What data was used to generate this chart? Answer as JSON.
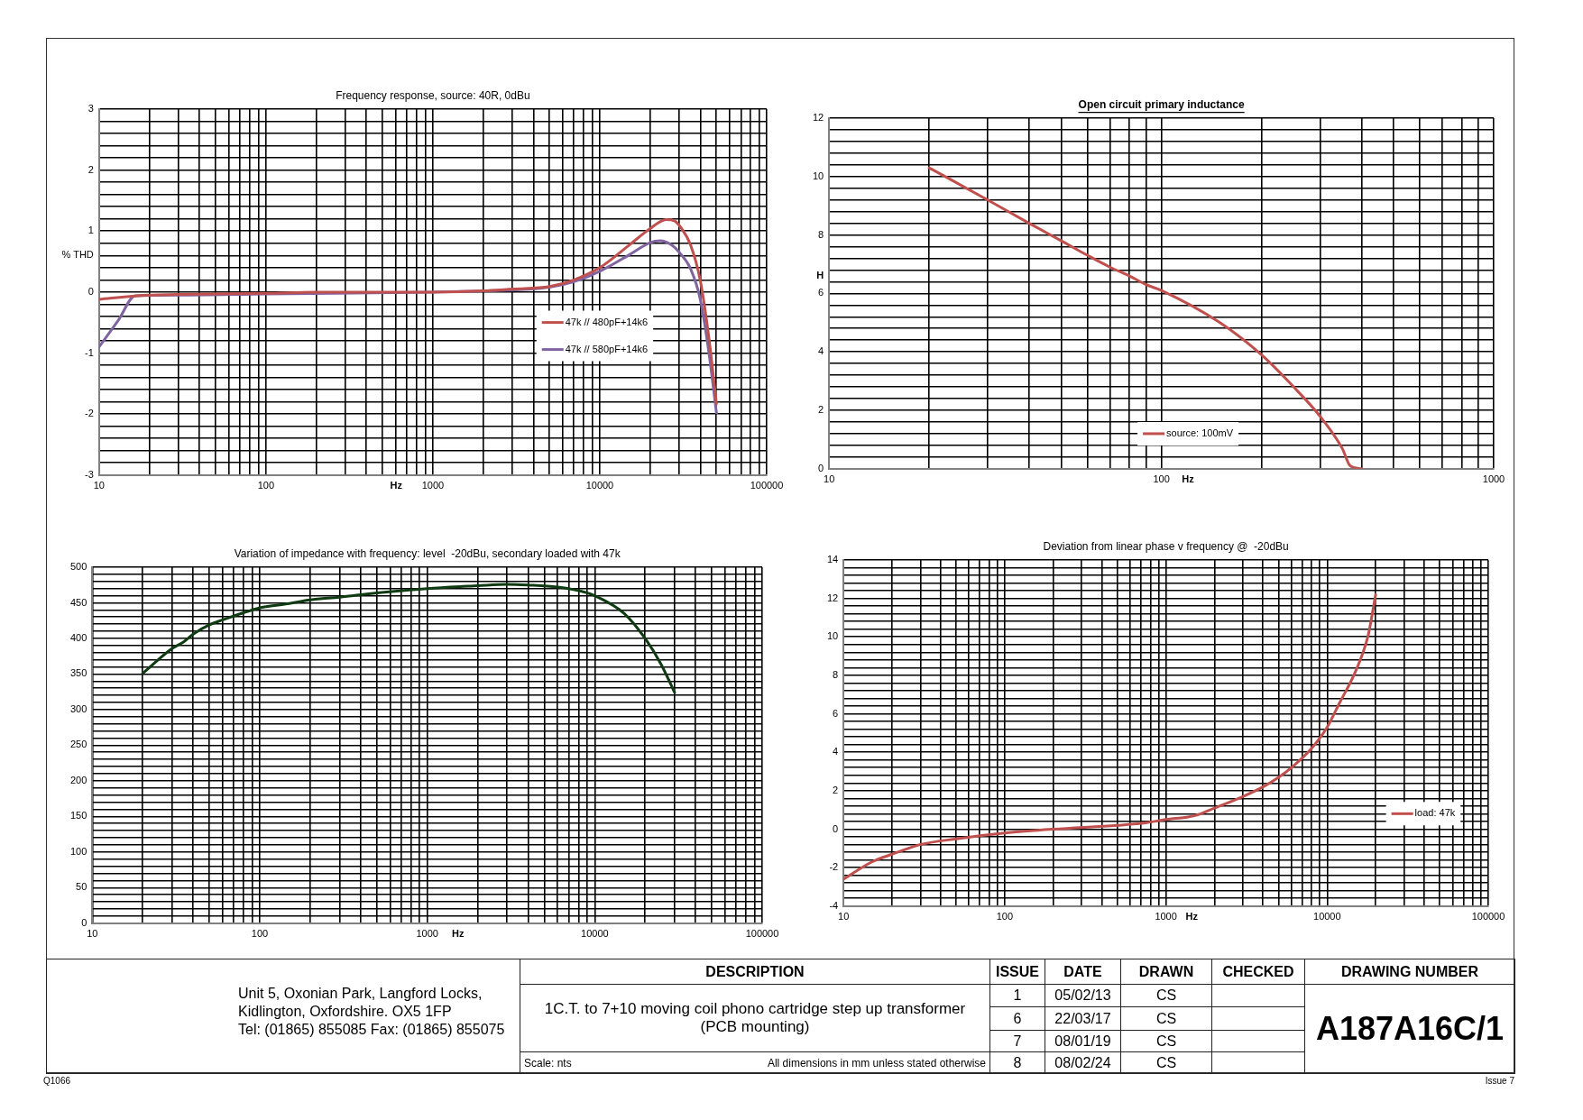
{
  "chart_data": [
    {
      "type": "line",
      "title": "Frequency response, source: 40R, 0dBu",
      "xlabel": "Hz",
      "ylabel": "% THD",
      "log": "x",
      "grid": true,
      "legend": "right",
      "marker": "none",
      "xlim": [
        10,
        100000
      ],
      "xticks": [
        10,
        {
          "value": 20,
          "label": null
        },
        {
          "value": 30,
          "label": null
        },
        {
          "value": 40,
          "label": null
        },
        {
          "value": 50,
          "label": null
        },
        {
          "value": 60,
          "label": null
        },
        {
          "value": 70,
          "label": null
        },
        {
          "value": 80,
          "label": null
        },
        {
          "value": 90,
          "label": null
        },
        100,
        {
          "value": 200,
          "label": null
        },
        {
          "value": 300,
          "label": null
        },
        {
          "value": 400,
          "label": null
        },
        {
          "value": 500,
          "label": null
        },
        {
          "value": 600,
          "label": null
        },
        {
          "value": 700,
          "label": null
        },
        {
          "value": 800,
          "label": null
        },
        {
          "value": 900,
          "label": null
        },
        1000,
        {
          "value": 2000,
          "label": null
        },
        {
          "value": 3000,
          "label": null
        },
        {
          "value": 4000,
          "label": null
        },
        {
          "value": 5000,
          "label": null
        },
        {
          "value": 6000,
          "label": null
        },
        {
          "value": 7000,
          "label": null
        },
        {
          "value": 8000,
          "label": null
        },
        {
          "value": 9000,
          "label": null
        },
        10000,
        {
          "value": 20000,
          "label": null
        },
        {
          "value": 30000,
          "label": null
        },
        {
          "value": 40000,
          "label": null
        },
        {
          "value": 50000,
          "label": null
        },
        {
          "value": 60000,
          "label": null
        },
        {
          "value": 70000,
          "label": null
        },
        {
          "value": 80000,
          "label": null
        },
        {
          "value": 90000,
          "label": null
        },
        100000
      ],
      "ylim": [
        -3,
        3
      ],
      "yticks": [
        -3,
        {
          "value": -2.8,
          "label": null
        },
        {
          "value": -2.6,
          "label": null
        },
        {
          "value": -2.4,
          "label": null
        },
        {
          "value": -2.2,
          "label": null
        },
        -2,
        {
          "value": -1.8,
          "label": null
        },
        {
          "value": -1.6,
          "label": null
        },
        {
          "value": -1.4,
          "label": null
        },
        {
          "value": -1.2,
          "label": null
        },
        -1,
        {
          "value": -0.8,
          "label": null
        },
        {
          "value": -0.6,
          "label": null
        },
        {
          "value": -0.4,
          "label": null
        },
        {
          "value": -0.2,
          "label": null
        },
        0,
        {
          "value": 0.2,
          "label": null
        },
        {
          "value": 0.4,
          "label": null
        },
        {
          "value": 0.6,
          "label": null
        },
        {
          "value": 0.8,
          "label": null
        },
        1,
        {
          "value": 1.2,
          "label": null
        },
        {
          "value": 1.4,
          "label": null
        },
        {
          "value": 1.6,
          "label": null
        },
        {
          "value": 1.8,
          "label": null
        },
        2,
        {
          "value": 2.2,
          "label": null
        },
        {
          "value": 2.4,
          "label": null
        },
        {
          "value": 2.6,
          "label": null
        },
        {
          "value": 2.8,
          "label": null
        },
        3
      ],
      "series": [
        {
          "name": "47k // 480pF+14k6",
          "color": "#c0504d",
          "x": [
            10,
            17,
            30,
            100,
            200,
            1000,
            2000,
            3000,
            5000,
            7000,
            10000,
            15000,
            20000,
            25000,
            28000,
            30000,
            35000,
            40000,
            45000,
            50000
          ],
          "values": [
            -0.12,
            -0.06,
            -0.04,
            -0.02,
            0,
            0,
            0.02,
            0.05,
            0.09,
            0.2,
            0.4,
            0.77,
            1.04,
            1.19,
            1.17,
            1.09,
            0.77,
            0.19,
            -0.74,
            -1.83
          ]
        },
        {
          "name": "47k // 580pF+14k6",
          "color": "#8064a2",
          "x": [
            10,
            13,
            16.5,
            30,
            100,
            1000,
            2000,
            5000,
            7000,
            10000,
            15000,
            20000,
            23000,
            27000,
            30000,
            35000,
            40000,
            45000,
            50000
          ],
          "values": [
            -0.9,
            -0.47,
            -0.06,
            -0.05,
            -0.03,
            0,
            0.02,
            0.08,
            0.17,
            0.34,
            0.61,
            0.81,
            0.84,
            0.77,
            0.65,
            0.38,
            -0.12,
            -0.98,
            -1.98
          ]
        }
      ]
    },
    {
      "type": "line",
      "title": "Open circuit primary inductance",
      "xlabel": "Hz",
      "ylabel": "H",
      "log": "x",
      "grid": true,
      "legend": "bottom",
      "marker": "none",
      "xlim": [
        10,
        1000
      ],
      "xticks": [
        10,
        {
          "value": 20,
          "label": null
        },
        {
          "value": 30,
          "label": null
        },
        {
          "value": 40,
          "label": null
        },
        {
          "value": 50,
          "label": null
        },
        {
          "value": 60,
          "label": null
        },
        {
          "value": 70,
          "label": null
        },
        {
          "value": 80,
          "label": null
        },
        {
          "value": 90,
          "label": null
        },
        100,
        {
          "value": 200,
          "label": null
        },
        {
          "value": 300,
          "label": null
        },
        {
          "value": 400,
          "label": null
        },
        {
          "value": 500,
          "label": null
        },
        {
          "value": 600,
          "label": null
        },
        {
          "value": 700,
          "label": null
        },
        {
          "value": 800,
          "label": null
        },
        {
          "value": 900,
          "label": null
        },
        1000
      ],
      "ylim": [
        0,
        12
      ],
      "yticks": [
        0,
        {
          "value": 0.4,
          "label": null
        },
        {
          "value": 0.8,
          "label": null
        },
        {
          "value": 1.2,
          "label": null
        },
        {
          "value": 1.6,
          "label": null
        },
        2,
        {
          "value": 2.4,
          "label": null
        },
        {
          "value": 2.8,
          "label": null
        },
        {
          "value": 3.2,
          "label": null
        },
        {
          "value": 3.6,
          "label": null
        },
        4,
        {
          "value": 4.4,
          "label": null
        },
        {
          "value": 4.8,
          "label": null
        },
        {
          "value": 5.2,
          "label": null
        },
        {
          "value": 5.6,
          "label": null
        },
        6,
        {
          "value": 6.4,
          "label": null
        },
        {
          "value": 6.8,
          "label": null
        },
        {
          "value": 7.2,
          "label": null
        },
        {
          "value": 7.6,
          "label": null
        },
        8,
        {
          "value": 8.4,
          "label": null
        },
        {
          "value": 8.8,
          "label": null
        },
        {
          "value": 9.2,
          "label": null
        },
        {
          "value": 9.6,
          "label": null
        },
        10,
        {
          "value": 10.4,
          "label": null
        },
        {
          "value": 10.8,
          "label": null
        },
        {
          "value": 11.2,
          "label": null
        },
        {
          "value": 11.6,
          "label": null
        },
        12
      ],
      "series": [
        {
          "name": "source: 100mV",
          "color": "#c0504d",
          "x": [
            20,
            30,
            40,
            50,
            60,
            70,
            80,
            90,
            100,
            150,
            200,
            250,
            300,
            350,
            370,
            400
          ],
          "values": [
            10.3,
            9.2,
            8.4,
            7.8,
            7.3,
            6.9,
            6.6,
            6.3,
            6.1,
            5.0,
            3.9,
            2.8,
            1.8,
            0.7,
            0.1,
            0
          ]
        }
      ]
    },
    {
      "type": "line",
      "title": "Variation of impedance with frequency: level  -20dBu, secondary loaded with 47k",
      "xlabel": "Hz",
      "log": "x",
      "grid": true,
      "marker": "none",
      "xlim": [
        10,
        100000
      ],
      "xticks": [
        10,
        {
          "value": 20,
          "label": null
        },
        {
          "value": 30,
          "label": null
        },
        {
          "value": 40,
          "label": null
        },
        {
          "value": 50,
          "label": null
        },
        {
          "value": 60,
          "label": null
        },
        {
          "value": 70,
          "label": null
        },
        {
          "value": 80,
          "label": null
        },
        {
          "value": 90,
          "label": null
        },
        100,
        {
          "value": 200,
          "label": null
        },
        {
          "value": 300,
          "label": null
        },
        {
          "value": 400,
          "label": null
        },
        {
          "value": 500,
          "label": null
        },
        {
          "value": 600,
          "label": null
        },
        {
          "value": 700,
          "label": null
        },
        {
          "value": 800,
          "label": null
        },
        {
          "value": 900,
          "label": null
        },
        1000,
        {
          "value": 2000,
          "label": null
        },
        {
          "value": 3000,
          "label": null
        },
        {
          "value": 4000,
          "label": null
        },
        {
          "value": 5000,
          "label": null
        },
        {
          "value": 6000,
          "label": null
        },
        {
          "value": 7000,
          "label": null
        },
        {
          "value": 8000,
          "label": null
        },
        {
          "value": 9000,
          "label": null
        },
        10000,
        {
          "value": 20000,
          "label": null
        },
        {
          "value": 30000,
          "label": null
        },
        {
          "value": 40000,
          "label": null
        },
        {
          "value": 50000,
          "label": null
        },
        {
          "value": 60000,
          "label": null
        },
        {
          "value": 70000,
          "label": null
        },
        {
          "value": 80000,
          "label": null
        },
        {
          "value": 90000,
          "label": null
        },
        100000
      ],
      "ylim": [
        0,
        500
      ],
      "yticks": [
        0,
        {
          "value": 10,
          "label": null
        },
        {
          "value": 20,
          "label": null
        },
        {
          "value": 30,
          "label": null
        },
        {
          "value": 40,
          "label": null
        },
        50,
        {
          "value": 60,
          "label": null
        },
        {
          "value": 70,
          "label": null
        },
        {
          "value": 80,
          "label": null
        },
        {
          "value": 90,
          "label": null
        },
        100,
        {
          "value": 110,
          "label": null
        },
        {
          "value": 120,
          "label": null
        },
        {
          "value": 130,
          "label": null
        },
        {
          "value": 140,
          "label": null
        },
        150,
        {
          "value": 160,
          "label": null
        },
        {
          "value": 170,
          "label": null
        },
        {
          "value": 180,
          "label": null
        },
        {
          "value": 190,
          "label": null
        },
        200,
        {
          "value": 210,
          "label": null
        },
        {
          "value": 220,
          "label": null
        },
        {
          "value": 230,
          "label": null
        },
        {
          "value": 240,
          "label": null
        },
        250,
        {
          "value": 260,
          "label": null
        },
        {
          "value": 270,
          "label": null
        },
        {
          "value": 280,
          "label": null
        },
        {
          "value": 290,
          "label": null
        },
        300,
        {
          "value": 310,
          "label": null
        },
        {
          "value": 320,
          "label": null
        },
        {
          "value": 330,
          "label": null
        },
        {
          "value": 340,
          "label": null
        },
        350,
        {
          "value": 360,
          "label": null
        },
        {
          "value": 370,
          "label": null
        },
        {
          "value": 380,
          "label": null
        },
        {
          "value": 390,
          "label": null
        },
        400,
        {
          "value": 410,
          "label": null
        },
        {
          "value": 420,
          "label": null
        },
        {
          "value": 430,
          "label": null
        },
        {
          "value": 440,
          "label": null
        },
        450,
        {
          "value": 460,
          "label": null
        },
        {
          "value": 470,
          "label": null
        },
        {
          "value": 480,
          "label": null
        },
        {
          "value": 490,
          "label": null
        },
        500
      ],
      "series": [
        {
          "color": "#0f3b12",
          "x": [
            20,
            30,
            35,
            40,
            50,
            60,
            80,
            100,
            150,
            200,
            300,
            500,
            1000,
            2000,
            3000,
            4000,
            6000,
            9000,
            10000,
            15000,
            20000,
            25000,
            30000
          ],
          "values": [
            351,
            386,
            395,
            406,
            419,
            426,
            436,
            443,
            449,
            454,
            458,
            464,
            470,
            474,
            476,
            475,
            472,
            464,
            460,
            435,
            400,
            363,
            324
          ]
        }
      ]
    },
    {
      "type": "line",
      "title": "Deviation from linear phase v frequency @  -20dBu",
      "xlabel": "Hz",
      "log": "x",
      "grid": true,
      "legend": "right",
      "marker": "none",
      "xlim": [
        10,
        100000
      ],
      "xticks": [
        10,
        {
          "value": 20,
          "label": null
        },
        {
          "value": 30,
          "label": null
        },
        {
          "value": 40,
          "label": null
        },
        {
          "value": 50,
          "label": null
        },
        {
          "value": 60,
          "label": null
        },
        {
          "value": 70,
          "label": null
        },
        {
          "value": 80,
          "label": null
        },
        {
          "value": 90,
          "label": null
        },
        100,
        {
          "value": 200,
          "label": null
        },
        {
          "value": 300,
          "label": null
        },
        {
          "value": 400,
          "label": null
        },
        {
          "value": 500,
          "label": null
        },
        {
          "value": 600,
          "label": null
        },
        {
          "value": 700,
          "label": null
        },
        {
          "value": 800,
          "label": null
        },
        {
          "value": 900,
          "label": null
        },
        1000,
        {
          "value": 2000,
          "label": null
        },
        {
          "value": 3000,
          "label": null
        },
        {
          "value": 4000,
          "label": null
        },
        {
          "value": 5000,
          "label": null
        },
        {
          "value": 6000,
          "label": null
        },
        {
          "value": 7000,
          "label": null
        },
        {
          "value": 8000,
          "label": null
        },
        {
          "value": 9000,
          "label": null
        },
        10000,
        {
          "value": 20000,
          "label": null
        },
        {
          "value": 30000,
          "label": null
        },
        {
          "value": 40000,
          "label": null
        },
        {
          "value": 50000,
          "label": null
        },
        {
          "value": 60000,
          "label": null
        },
        {
          "value": 70000,
          "label": null
        },
        {
          "value": 80000,
          "label": null
        },
        {
          "value": 90000,
          "label": null
        },
        100000
      ],
      "ylim": [
        -4,
        14
      ],
      "yticks": [
        -4,
        {
          "value": -3.6,
          "label": null
        },
        {
          "value": -3.2,
          "label": null
        },
        {
          "value": -2.8,
          "label": null
        },
        {
          "value": -2.4,
          "label": null
        },
        -2,
        {
          "value": -1.6,
          "label": null
        },
        {
          "value": -1.2,
          "label": null
        },
        {
          "value": -0.8,
          "label": null
        },
        {
          "value": -0.4,
          "label": null
        },
        0,
        {
          "value": 0.4,
          "label": null
        },
        {
          "value": 0.8,
          "label": null
        },
        {
          "value": 1.2,
          "label": null
        },
        {
          "value": 1.6,
          "label": null
        },
        2,
        {
          "value": 2.4,
          "label": null
        },
        {
          "value": 2.8,
          "label": null
        },
        {
          "value": 3.2,
          "label": null
        },
        {
          "value": 3.6,
          "label": null
        },
        4,
        {
          "value": 4.4,
          "label": null
        },
        {
          "value": 4.8,
          "label": null
        },
        {
          "value": 5.2,
          "label": null
        },
        {
          "value": 5.6,
          "label": null
        },
        6,
        {
          "value": 6.4,
          "label": null
        },
        {
          "value": 6.8,
          "label": null
        },
        {
          "value": 7.2,
          "label": null
        },
        {
          "value": 7.6,
          "label": null
        },
        8,
        {
          "value": 8.4,
          "label": null
        },
        {
          "value": 8.8,
          "label": null
        },
        {
          "value": 9.2,
          "label": null
        },
        {
          "value": 9.6,
          "label": null
        },
        10,
        {
          "value": 10.4,
          "label": null
        },
        {
          "value": 10.8,
          "label": null
        },
        {
          "value": 11.2,
          "label": null
        },
        {
          "value": 11.6,
          "label": null
        },
        12,
        {
          "value": 12.4,
          "label": null
        },
        {
          "value": 12.8,
          "label": null
        },
        {
          "value": 13.2,
          "label": null
        },
        {
          "value": 13.6,
          "label": null
        },
        14
      ],
      "series": [
        {
          "name": "load: 47k",
          "color": "#c0504d",
          "x": [
            10,
            15,
            20,
            30,
            50,
            100,
            200,
            500,
            700,
            1000,
            1500,
            2000,
            3000,
            4000,
            5000,
            6000,
            8000,
            10000,
            12000,
            15000,
            18000,
            20000
          ],
          "values": [
            -2.6,
            -1.7,
            -1.3,
            -0.8,
            -0.5,
            -0.2,
            0,
            0.2,
            0.3,
            0.5,
            0.7,
            1.1,
            1.7,
            2.2,
            2.7,
            3.2,
            4.2,
            5.3,
            6.6,
            8.2,
            10.1,
            12.2
          ]
        }
      ]
    },
    {
      "type": "other",
      "annotations": [
        "Unit 5, Oxonian Park, Langford Locks,",
        "Kidlington, Oxfordshire.  OX5 1FP",
        "Tel: (01865) 855085 Fax: (01865) 855075",
        "DESCRIPTION",
        "ISSUE",
        "DATE",
        "DRAWN",
        "CHECKED",
        "DRAWING NUMBER",
        "1C.T. to 7+10 moving coil phono cartridge step up transformer",
        "(PCB mounting)",
        "1",
        "05/02/13",
        "CS",
        "6",
        "22/03/17",
        "CS",
        "7",
        "08/01/19",
        "CS",
        "8",
        "08/02/24",
        "CS",
        "A187A16C/1",
        "Scale: nts",
        "All dimensions in mm unless stated otherwise",
        "Q1066",
        "Issue 7"
      ]
    }
  ]
}
